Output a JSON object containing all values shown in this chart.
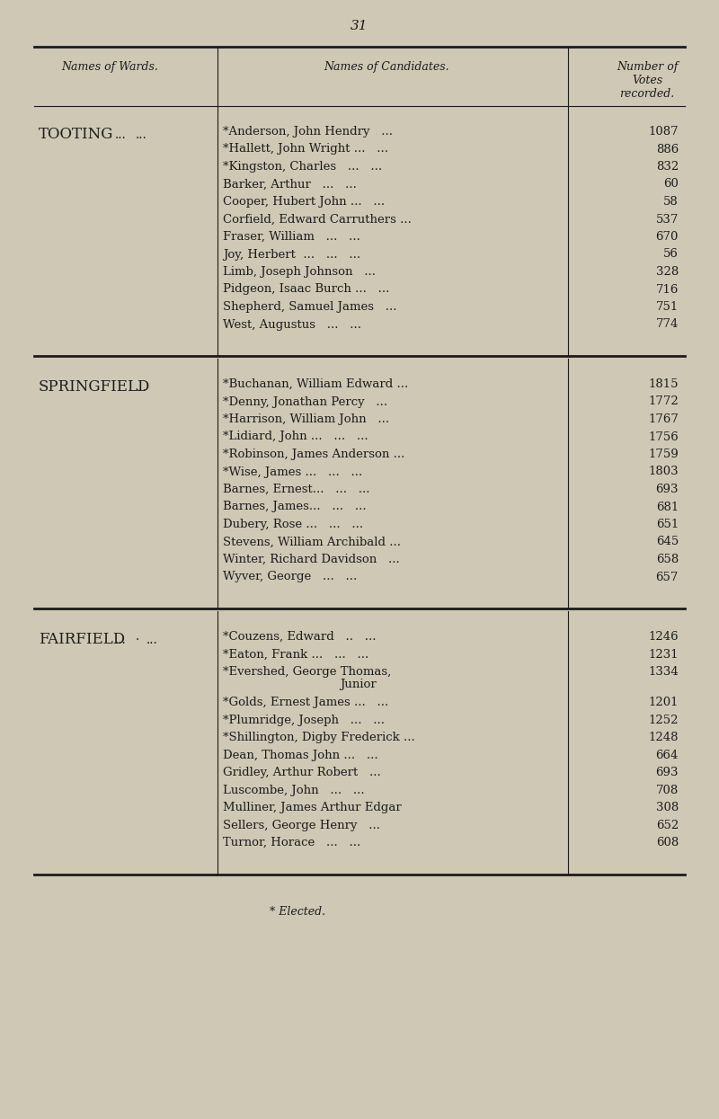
{
  "page_number": "31",
  "bg_color": "#cec8b4",
  "text_color": "#1c1c1c",
  "sections": [
    {
      "ward": "TOOTING",
      "rows": [
        {
          "name": "*Anderson, John Hendry   ...",
          "votes": "1087"
        },
        {
          "name": "*Hallett, John Wright ...   ...",
          "votes": "886"
        },
        {
          "name": "*Kingston, Charles   ...   ...",
          "votes": "832"
        },
        {
          "name": "Barker, Arthur   ...   ...",
          "votes": "60"
        },
        {
          "name": "Cooper, Hubert John ...   ...",
          "votes": "58"
        },
        {
          "name": "Corfield, Edward Carruthers ...",
          "votes": "537"
        },
        {
          "name": "Fraser, William   ...   ...",
          "votes": "670"
        },
        {
          "name": "Joy, Herbert  ...   ...   ...",
          "votes": "56"
        },
        {
          "name": "Limb, Joseph Johnson   ...",
          "votes": "328"
        },
        {
          "name": "Pidgeon, Isaac Burch ...   ...",
          "votes": "716"
        },
        {
          "name": "Shepherd, Samuel James   ...",
          "votes": "751"
        },
        {
          "name": "West, Augustus   ...   ...",
          "votes": "774"
        }
      ]
    },
    {
      "ward": "SPRINGFIELD",
      "rows": [
        {
          "name": "*Buchanan, William Edward ...",
          "votes": "1815"
        },
        {
          "name": "*Denny, Jonathan Percy   ...",
          "votes": "1772"
        },
        {
          "name": "*Harrison, William John   ...",
          "votes": "1767"
        },
        {
          "name": "*Lidiard, John ...   ...   ...",
          "votes": "1756"
        },
        {
          "name": "*Robinson, James Anderson ...",
          "votes": "1759"
        },
        {
          "name": "*Wise, James ...   ...   ...",
          "votes": "1803"
        },
        {
          "name": "Barnes, Ernest...   ...   ...",
          "votes": "693"
        },
        {
          "name": "Barnes, James...   ...   ...",
          "votes": "681"
        },
        {
          "name": "Dubery, Rose ...   ...   ...",
          "votes": "651"
        },
        {
          "name": "Stevens, William Archibald ...",
          "votes": "645"
        },
        {
          "name": "Winter, Richard Davidson   ...",
          "votes": "658"
        },
        {
          "name": "Wyver, George   ...   ...",
          "votes": "657"
        }
      ]
    },
    {
      "ward": "FAIRFIELD",
      "rows": [
        {
          "name": "*Couzens, Edward   ..   ...",
          "votes": "1246"
        },
        {
          "name": "*Eaton, Frank ...   ...   ...",
          "votes": "1231"
        },
        {
          "name": "*Evershed, George Thomas,",
          "votes": "1334",
          "continuation": "Junior"
        },
        {
          "name": "*Golds, Ernest James ...   ...",
          "votes": "1201"
        },
        {
          "name": "*Plumridge, Joseph   ...   ...",
          "votes": "1252"
        },
        {
          "name": "*Shillington, Digby Frederick ...",
          "votes": "1248"
        },
        {
          "name": "Dean, Thomas John ...   ...",
          "votes": "664"
        },
        {
          "name": "Gridley, Arthur Robert   ...",
          "votes": "693"
        },
        {
          "name": "Luscombe, John   ...   ...",
          "votes": "708"
        },
        {
          "name": "Mulliner, James Arthur Edgar",
          "votes": "308"
        },
        {
          "name": "Sellers, George Henry   ...",
          "votes": "652"
        },
        {
          "name": "Turnor, Horace   ...   ...",
          "votes": "608"
        }
      ]
    }
  ],
  "footnote": "* Elected."
}
